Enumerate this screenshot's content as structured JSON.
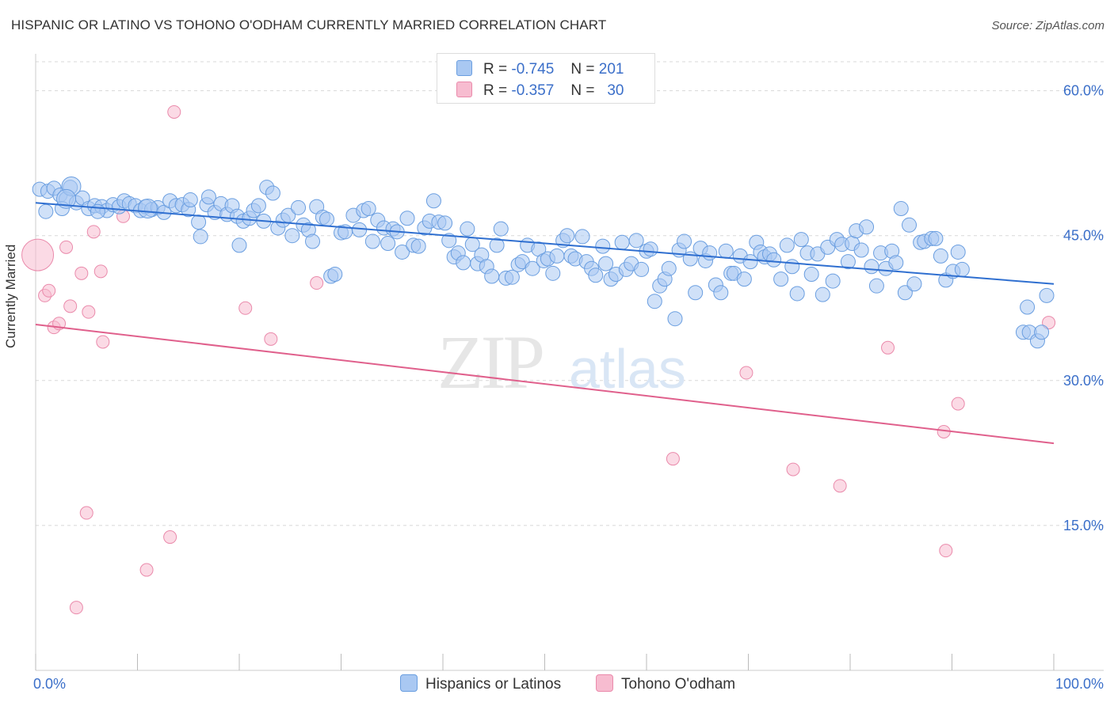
{
  "header": {
    "title": "HISPANIC OR LATINO VS TOHONO O'ODHAM CURRENTLY MARRIED CORRELATION CHART",
    "source": "Source: ZipAtlas.com"
  },
  "legend": {
    "r_label": "R =",
    "n_label": "N =",
    "series": [
      {
        "r": "-0.745",
        "n": "201"
      },
      {
        "r": "-0.357",
        "n": "30"
      }
    ]
  },
  "watermark": {
    "zip": "ZIP",
    "atlas": "atlas"
  },
  "colors": {
    "blue_fill": "#a9c8f2",
    "blue_stroke": "#6a9ee0",
    "blue_line": "#2f6fd0",
    "pink_fill": "#f7bcd0",
    "pink_stroke": "#ea8aab",
    "pink_line": "#e0608c",
    "tick_label": "#3b6fc9",
    "grid": "#d8d8d8"
  },
  "chart_data": {
    "type": "scatter",
    "title": "HISPANIC OR LATINO VS TOHONO O'ODHAM CURRENTLY MARRIED CORRELATION CHART",
    "xlabel": "",
    "ylabel": "Currently Married",
    "xlim": [
      0,
      100
    ],
    "ylim": [
      0,
      63
    ],
    "x_tick_labels": [
      "0.0%",
      "100.0%"
    ],
    "y_ticks": [
      15,
      30,
      45,
      60
    ],
    "y_tick_labels": [
      "15.0%",
      "30.0%",
      "45.0%",
      "60.0%"
    ],
    "grid": "horizontal dashed",
    "legend_position": "bottom",
    "series": [
      {
        "name": "Hispanics or Latinos",
        "color": "#a9c8f2",
        "trend": {
          "x": [
            0,
            100
          ],
          "y": [
            48.4,
            40.0
          ]
        },
        "points": [
          [
            0.4,
            49.8
          ],
          [
            1.2,
            49.6
          ],
          [
            1.8,
            49.9
          ],
          [
            2.4,
            49.2
          ],
          [
            3.4,
            50.0
          ],
          [
            3.0,
            48.8
          ],
          [
            4.0,
            48.4
          ],
          [
            4.6,
            48.9
          ],
          [
            5.2,
            47.8
          ],
          [
            5.8,
            48.1
          ],
          [
            6.5,
            48.0
          ],
          [
            7.0,
            47.6
          ],
          [
            7.6,
            48.2
          ],
          [
            8.2,
            48.0
          ],
          [
            8.7,
            48.6
          ],
          [
            9.2,
            48.3
          ],
          [
            9.8,
            48.1
          ],
          [
            10.3,
            47.6
          ],
          [
            10.8,
            48.0
          ],
          [
            11.4,
            47.7
          ],
          [
            12.0,
            47.9
          ],
          [
            12.6,
            47.4
          ],
          [
            13.2,
            48.6
          ],
          [
            13.8,
            48.1
          ],
          [
            14.4,
            48.2
          ],
          [
            15.0,
            47.7
          ],
          [
            15.2,
            48.7
          ],
          [
            16.0,
            46.4
          ],
          [
            16.2,
            44.9
          ],
          [
            16.8,
            48.2
          ],
          [
            17.0,
            49.0
          ],
          [
            17.6,
            47.4
          ],
          [
            18.2,
            48.3
          ],
          [
            18.8,
            47.2
          ],
          [
            19.3,
            48.1
          ],
          [
            19.8,
            47.0
          ],
          [
            20.0,
            44.0
          ],
          [
            20.4,
            46.5
          ],
          [
            21.0,
            46.8
          ],
          [
            21.4,
            47.6
          ],
          [
            21.9,
            48.1
          ],
          [
            22.4,
            46.5
          ],
          [
            22.7,
            50.0
          ],
          [
            23.3,
            49.4
          ],
          [
            23.8,
            45.8
          ],
          [
            24.3,
            46.6
          ],
          [
            24.8,
            47.1
          ],
          [
            25.2,
            45.0
          ],
          [
            25.8,
            47.9
          ],
          [
            26.3,
            46.1
          ],
          [
            26.8,
            45.6
          ],
          [
            27.2,
            44.4
          ],
          [
            27.6,
            48.0
          ],
          [
            28.2,
            46.9
          ],
          [
            28.6,
            46.7
          ],
          [
            29.0,
            40.8
          ],
          [
            29.4,
            41.0
          ],
          [
            30.0,
            45.3
          ],
          [
            30.4,
            45.4
          ],
          [
            31.2,
            47.1
          ],
          [
            31.8,
            45.6
          ],
          [
            32.2,
            47.6
          ],
          [
            32.7,
            47.8
          ],
          [
            33.1,
            44.4
          ],
          [
            33.6,
            46.6
          ],
          [
            34.2,
            45.8
          ],
          [
            34.6,
            44.2
          ],
          [
            35.1,
            45.7
          ],
          [
            35.5,
            45.4
          ],
          [
            36.0,
            43.3
          ],
          [
            36.5,
            46.8
          ],
          [
            37.1,
            44.0
          ],
          [
            37.6,
            43.9
          ],
          [
            38.2,
            45.8
          ],
          [
            38.7,
            46.5
          ],
          [
            39.1,
            48.6
          ],
          [
            39.6,
            46.4
          ],
          [
            40.2,
            46.3
          ],
          [
            40.6,
            44.5
          ],
          [
            41.1,
            42.8
          ],
          [
            41.5,
            43.2
          ],
          [
            42.0,
            42.2
          ],
          [
            42.4,
            45.7
          ],
          [
            42.9,
            44.1
          ],
          [
            43.4,
            42.1
          ],
          [
            43.8,
            43.0
          ],
          [
            44.3,
            41.8
          ],
          [
            44.8,
            40.8
          ],
          [
            45.3,
            44.0
          ],
          [
            45.7,
            45.7
          ],
          [
            46.2,
            40.6
          ],
          [
            46.8,
            40.7
          ],
          [
            47.4,
            42.0
          ],
          [
            47.8,
            42.3
          ],
          [
            48.3,
            44.0
          ],
          [
            48.8,
            41.6
          ],
          [
            49.4,
            43.6
          ],
          [
            49.9,
            42.4
          ],
          [
            50.3,
            42.6
          ],
          [
            50.8,
            41.1
          ],
          [
            51.2,
            42.9
          ],
          [
            51.8,
            44.5
          ],
          [
            52.2,
            45.0
          ],
          [
            52.6,
            42.9
          ],
          [
            53.0,
            42.6
          ],
          [
            53.7,
            44.9
          ],
          [
            54.1,
            42.3
          ],
          [
            54.6,
            41.6
          ],
          [
            55.0,
            40.9
          ],
          [
            55.7,
            43.9
          ],
          [
            56.0,
            42.1
          ],
          [
            56.5,
            40.5
          ],
          [
            57.0,
            41.0
          ],
          [
            57.6,
            44.3
          ],
          [
            58.0,
            41.5
          ],
          [
            58.5,
            42.1
          ],
          [
            59.0,
            44.5
          ],
          [
            59.5,
            41.5
          ],
          [
            60.0,
            43.4
          ],
          [
            60.4,
            43.6
          ],
          [
            60.8,
            38.2
          ],
          [
            61.3,
            39.8
          ],
          [
            61.8,
            40.5
          ],
          [
            62.2,
            41.6
          ],
          [
            62.8,
            36.4
          ],
          [
            63.2,
            43.5
          ],
          [
            63.7,
            44.4
          ],
          [
            64.3,
            42.6
          ],
          [
            64.8,
            39.1
          ],
          [
            65.3,
            43.7
          ],
          [
            65.8,
            42.4
          ],
          [
            66.2,
            43.2
          ],
          [
            66.8,
            39.9
          ],
          [
            67.3,
            39.1
          ],
          [
            67.8,
            43.4
          ],
          [
            68.3,
            41.1
          ],
          [
            68.6,
            41.1
          ],
          [
            69.2,
            42.9
          ],
          [
            69.6,
            40.5
          ],
          [
            70.2,
            42.3
          ],
          [
            70.8,
            44.3
          ],
          [
            71.2,
            43.3
          ],
          [
            71.6,
            42.8
          ],
          [
            72.1,
            43.1
          ],
          [
            72.5,
            42.5
          ],
          [
            73.2,
            40.5
          ],
          [
            73.8,
            44.0
          ],
          [
            74.3,
            41.8
          ],
          [
            74.8,
            39.0
          ],
          [
            75.2,
            44.6
          ],
          [
            75.8,
            43.2
          ],
          [
            76.2,
            41.0
          ],
          [
            76.8,
            43.1
          ],
          [
            77.3,
            38.9
          ],
          [
            77.8,
            43.8
          ],
          [
            78.3,
            40.3
          ],
          [
            78.7,
            44.6
          ],
          [
            79.2,
            44.1
          ],
          [
            79.8,
            42.3
          ],
          [
            80.2,
            44.2
          ],
          [
            80.6,
            45.5
          ],
          [
            81.1,
            43.5
          ],
          [
            81.6,
            45.9
          ],
          [
            82.1,
            41.8
          ],
          [
            82.6,
            39.8
          ],
          [
            83.0,
            43.2
          ],
          [
            83.5,
            41.6
          ],
          [
            84.1,
            43.4
          ],
          [
            84.5,
            42.2
          ],
          [
            85.0,
            47.8
          ],
          [
            85.4,
            39.1
          ],
          [
            85.8,
            46.1
          ],
          [
            86.3,
            40.0
          ],
          [
            86.9,
            44.3
          ],
          [
            87.3,
            44.4
          ],
          [
            88.0,
            44.7
          ],
          [
            88.4,
            44.7
          ],
          [
            88.9,
            42.9
          ],
          [
            89.4,
            40.4
          ],
          [
            90.1,
            41.3
          ],
          [
            90.6,
            43.3
          ],
          [
            91.0,
            41.5
          ],
          [
            97.0,
            35.0
          ],
          [
            97.4,
            37.6
          ],
          [
            97.6,
            35.0
          ],
          [
            98.4,
            34.1
          ],
          [
            98.8,
            35.0
          ],
          [
            99.3,
            38.8
          ],
          [
            1.0,
            47.5
          ],
          [
            2.6,
            47.8
          ],
          [
            6.1,
            47.5
          ]
        ],
        "large_points": [
          [
            3.5,
            50.1
          ],
          [
            3.0,
            48.8
          ],
          [
            11.0,
            47.8
          ]
        ]
      },
      {
        "name": "Tohono O'odham",
        "color": "#f7bcd0",
        "trend": {
          "x": [
            0,
            100
          ],
          "y": [
            35.8,
            23.5
          ]
        },
        "points": [
          [
            0.2,
            43.0
          ],
          [
            0.9,
            38.8
          ],
          [
            1.3,
            39.3
          ],
          [
            1.8,
            35.5
          ],
          [
            2.3,
            35.9
          ],
          [
            3.0,
            43.8
          ],
          [
            3.4,
            37.7
          ],
          [
            4.0,
            6.5
          ],
          [
            4.5,
            41.1
          ],
          [
            5.0,
            16.3
          ],
          [
            5.2,
            37.1
          ],
          [
            5.7,
            45.4
          ],
          [
            6.4,
            41.3
          ],
          [
            6.6,
            34.0
          ],
          [
            8.6,
            47.0
          ],
          [
            10.9,
            10.4
          ],
          [
            13.2,
            13.8
          ],
          [
            13.6,
            57.8
          ],
          [
            20.6,
            37.5
          ],
          [
            23.1,
            34.3
          ],
          [
            27.6,
            40.1
          ],
          [
            62.6,
            21.9
          ],
          [
            69.8,
            30.8
          ],
          [
            74.4,
            20.8
          ],
          [
            79.0,
            19.1
          ],
          [
            83.7,
            33.4
          ],
          [
            89.2,
            24.7
          ],
          [
            89.4,
            12.4
          ],
          [
            90.6,
            27.6
          ],
          [
            99.5,
            36.0
          ]
        ]
      }
    ]
  },
  "axes": {
    "y_axis_label": "Currently Married",
    "x_min_label": "0.0%",
    "x_max_label": "100.0%"
  },
  "bottom_legend": [
    {
      "label": "Hispanics or Latinos"
    },
    {
      "label": "Tohono O'odham"
    }
  ]
}
